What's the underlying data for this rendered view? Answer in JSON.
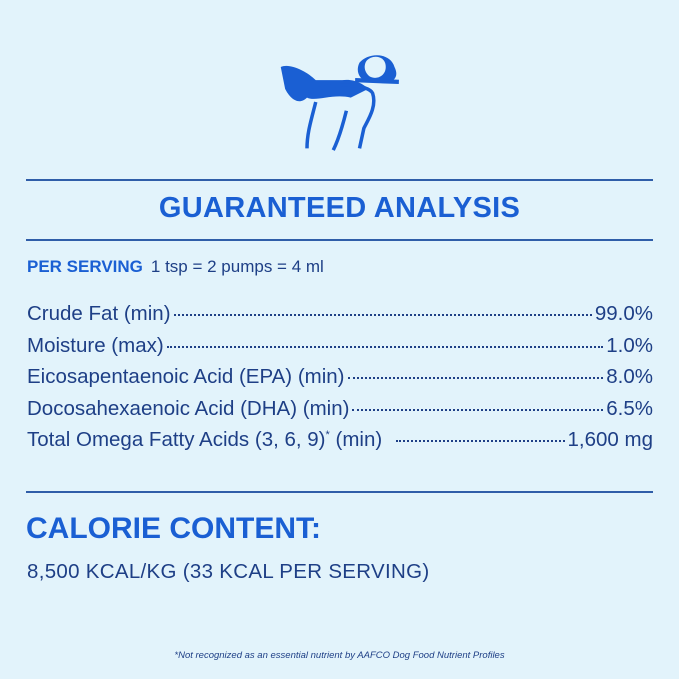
{
  "logo": {
    "icon": "dog-with-bone-icon",
    "color": "#1a5fd3"
  },
  "title": "GUARANTEED ANALYSIS",
  "serving": {
    "label": "PER SERVING",
    "value": "1 tsp = 2 pumps = 4 ml"
  },
  "rows": [
    {
      "name": "Crude Fat (min)",
      "value": "99.0%"
    },
    {
      "name": "Moisture (max)",
      "value": "1.0%"
    },
    {
      "name": "Eicosapentaenoic Acid (EPA) (min)",
      "value": "8.0%"
    },
    {
      "name": "Docosahexaenoic Acid (DHA) (min)",
      "value": "6.5%"
    },
    {
      "name": "Total Omega Fatty Acids (3, 6, 9)",
      "mark": "*",
      "suffix": "(min)",
      "value": "1,600 mg"
    }
  ],
  "calorie": {
    "heading": "CALORIE CONTENT:",
    "value": "8,500 KCAL/KG (33 KCAL PER SERVING)"
  },
  "footnote": "*Not recognized as an essential nutrient by AAFCO Dog Food Nutrient Profiles",
  "colors": {
    "background": "#e2f3fb",
    "accent": "#1a5fd3",
    "text": "#1e3f86"
  }
}
